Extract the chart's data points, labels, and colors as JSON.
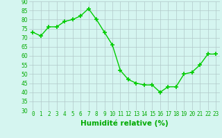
{
  "x": [
    0,
    1,
    2,
    3,
    4,
    5,
    6,
    7,
    8,
    9,
    10,
    11,
    12,
    13,
    14,
    15,
    16,
    17,
    18,
    19,
    20,
    21,
    22,
    23
  ],
  "y": [
    73,
    71,
    76,
    76,
    79,
    80,
    82,
    86,
    80,
    73,
    66,
    52,
    47,
    45,
    44,
    44,
    40,
    43,
    43,
    50,
    51,
    55,
    61,
    61
  ],
  "line_color": "#00cc00",
  "marker_color": "#00cc00",
  "bg_color": "#d5f5f0",
  "grid_color": "#b0c8c8",
  "xlabel": "Humidité relative (%)",
  "xlabel_color": "#00aa00",
  "ylim": [
    30,
    90
  ],
  "ytick_labels": [
    "30",
    "35",
    "40",
    "45",
    "50",
    "55",
    "60",
    "65",
    "70",
    "75",
    "80",
    "85",
    "90"
  ],
  "ytick_vals": [
    30,
    35,
    40,
    45,
    50,
    55,
    60,
    65,
    70,
    75,
    80,
    85,
    90
  ],
  "xtick_labels": [
    "0",
    "1",
    "2",
    "3",
    "4",
    "5",
    "6",
    "7",
    "8",
    "9",
    "10",
    "11",
    "12",
    "13",
    "14",
    "15",
    "16",
    "17",
    "18",
    "19",
    "20",
    "21",
    "22",
    "23"
  ],
  "tick_color": "#00aa00",
  "tick_fontsize": 5.5,
  "xlabel_fontsize": 7.5,
  "marker_size": 4,
  "line_width": 1.0
}
